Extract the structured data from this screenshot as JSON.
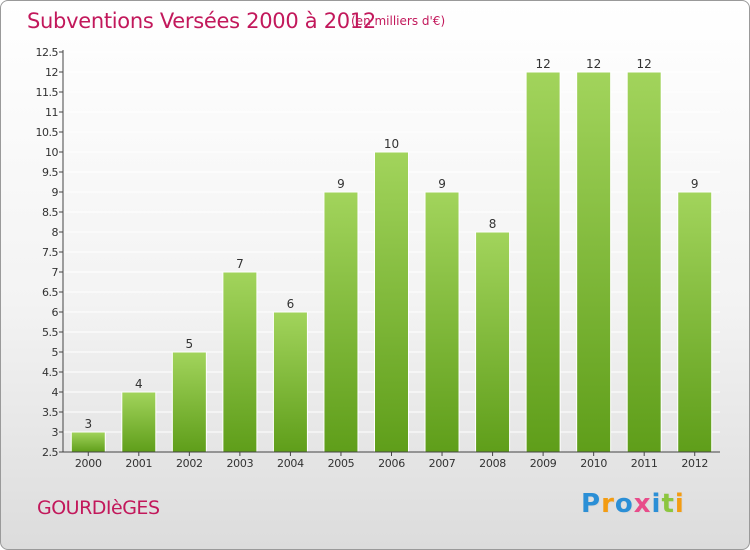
{
  "page": {
    "title": "Subventions Versées 2000 à 2012",
    "subtitle": "(en milliers d'€)",
    "place": "GOURDIèGES",
    "logo": {
      "text": "Proxiti",
      "letters": [
        {
          "ch": "P",
          "color": "#2b8fd6"
        },
        {
          "ch": "r",
          "color": "#f39c12"
        },
        {
          "ch": "o",
          "color": "#2b8fd6"
        },
        {
          "ch": "x",
          "color": "#e84c8a"
        },
        {
          "ch": "i",
          "color": "#2b8fd6"
        },
        {
          "ch": "t",
          "color": "#8cc63f"
        },
        {
          "ch": "i",
          "color": "#f39c12"
        }
      ]
    }
  },
  "colors": {
    "title": "#c2185b",
    "bar_top": "#a2d45c",
    "bar_bottom": "#5f9e1a",
    "grid": "#ffffff",
    "axis": "#444444",
    "text": "#333333"
  },
  "chart_data": {
    "type": "bar",
    "title": "Subventions Versées 2000 à 2012",
    "subtitle": "(en milliers d'€)",
    "categories": [
      "2000",
      "2001",
      "2002",
      "2003",
      "2004",
      "2005",
      "2006",
      "2007",
      "2008",
      "2009",
      "2010",
      "2011",
      "2012"
    ],
    "values": [
      3,
      4,
      5,
      7,
      6,
      9,
      10,
      9,
      8,
      12,
      12,
      12,
      9
    ],
    "value_labels": [
      "3",
      "4",
      "5",
      "7",
      "6",
      "9",
      "10",
      "9",
      "8",
      "12",
      "12",
      "12",
      "9"
    ],
    "ylim": [
      2.5,
      12.5
    ],
    "yticks": [
      "2.5",
      "3",
      "3.5",
      "4",
      "4.5",
      "5",
      "5.5",
      "6",
      "6.5",
      "7",
      "7.5",
      "8",
      "8.5",
      "9",
      "9.5",
      "10",
      "10.5",
      "11",
      "11.5",
      "12",
      "12.5"
    ],
    "grid": true,
    "legend": "none"
  }
}
